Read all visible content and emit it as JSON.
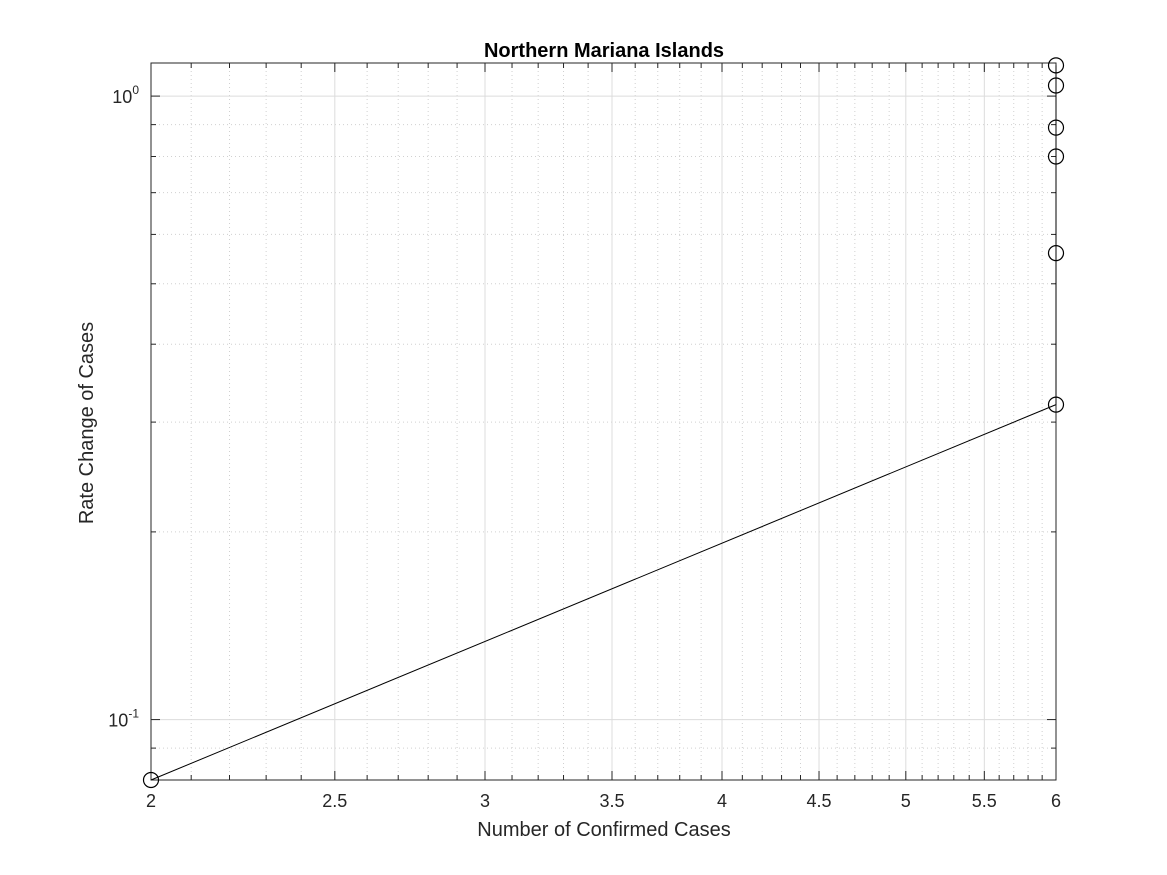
{
  "chart_data": {
    "type": "line",
    "title": "Northern Mariana Islands",
    "xlabel": "Number of Confirmed Cases",
    "ylabel": "Rate Change of Cases",
    "xscale": "log",
    "yscale": "log",
    "xlim": [
      2,
      6
    ],
    "ylim": [
      0.08,
      1.13
    ],
    "grid": true,
    "minor_grid": true,
    "x_ticks": [
      {
        "value": 2,
        "label": "2"
      },
      {
        "value": 2.5,
        "label": "2.5"
      },
      {
        "value": 3,
        "label": "3"
      },
      {
        "value": 3.5,
        "label": "3.5"
      },
      {
        "value": 4,
        "label": "4"
      },
      {
        "value": 4.5,
        "label": "4.5"
      },
      {
        "value": 5,
        "label": "5"
      },
      {
        "value": 5.5,
        "label": "5.5"
      },
      {
        "value": 6,
        "label": "6"
      }
    ],
    "y_ticks": [
      {
        "value": 0.1,
        "base": "10",
        "exp": "-1"
      },
      {
        "value": 1,
        "base": "10",
        "exp": "0"
      }
    ],
    "series": [
      {
        "color": "#000000",
        "marker": "circle",
        "x": [
          2,
          6,
          6,
          6,
          6,
          6,
          6
        ],
        "y": [
          0.08,
          0.32,
          0.56,
          0.8,
          0.89,
          1.04,
          1.12
        ]
      }
    ]
  }
}
